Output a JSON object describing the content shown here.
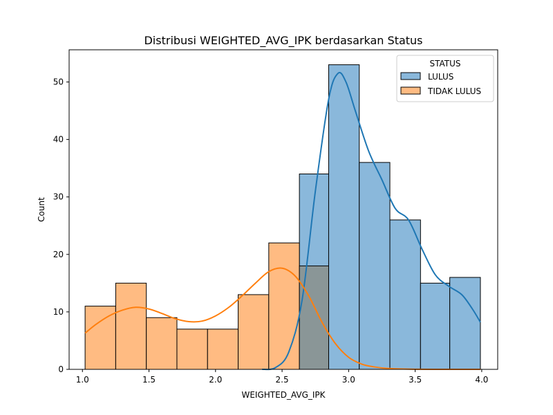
{
  "chart_data": {
    "type": "histogram",
    "title": "Distribusi WEIGHTED_AVG_IPK berdasarkan Status",
    "xlabel": "WEIGHTED_AVG_IPK",
    "ylabel": "Count",
    "xlim": [
      0.9,
      4.12
    ],
    "ylim": [
      0,
      55.6
    ],
    "xticks": [
      "1.0",
      "1.5",
      "2.0",
      "2.5",
      "3.0",
      "3.5",
      "4.0"
    ],
    "yticks": [
      "0",
      "10",
      "20",
      "30",
      "40",
      "50"
    ],
    "legend": {
      "title": "STATUS",
      "placement": "top-right"
    },
    "bin_edges": [
      1.02,
      1.25,
      1.48,
      1.71,
      1.94,
      2.17,
      2.4,
      2.63,
      2.85,
      3.08,
      3.31,
      3.54,
      3.76,
      3.99
    ],
    "series": [
      {
        "name": "LULUS",
        "color": "#1f77b4",
        "fill": "#8ab8db",
        "counts": [
          0,
          0,
          0,
          0,
          0,
          0,
          0,
          34,
          53,
          36,
          26,
          15,
          16
        ],
        "kde": [
          [
            2.35,
            0
          ],
          [
            2.45,
            0.3
          ],
          [
            2.55,
            3
          ],
          [
            2.65,
            12
          ],
          [
            2.75,
            31
          ],
          [
            2.85,
            47
          ],
          [
            2.92,
            51.5
          ],
          [
            2.98,
            50
          ],
          [
            3.05,
            45
          ],
          [
            3.15,
            38
          ],
          [
            3.25,
            33
          ],
          [
            3.35,
            28
          ],
          [
            3.45,
            26
          ],
          [
            3.55,
            21
          ],
          [
            3.65,
            16.5
          ],
          [
            3.75,
            14.5
          ],
          [
            3.85,
            13
          ],
          [
            3.93,
            10.5
          ],
          [
            3.99,
            8.2
          ]
        ]
      },
      {
        "name": "TIDAK LULUS",
        "color": "#ff7f0e",
        "fill": "#ffbb82",
        "counts": [
          11,
          15,
          9,
          7,
          7,
          13,
          22,
          18,
          0,
          0,
          0,
          0,
          0
        ],
        "kde": [
          [
            1.02,
            6.3
          ],
          [
            1.1,
            7.8
          ],
          [
            1.2,
            9.3
          ],
          [
            1.3,
            10.3
          ],
          [
            1.4,
            10.8
          ],
          [
            1.5,
            10.5
          ],
          [
            1.6,
            9.7
          ],
          [
            1.7,
            8.8
          ],
          [
            1.8,
            8.3
          ],
          [
            1.9,
            8.4
          ],
          [
            2.0,
            9.3
          ],
          [
            2.1,
            10.8
          ],
          [
            2.2,
            12.8
          ],
          [
            2.3,
            15
          ],
          [
            2.4,
            17
          ],
          [
            2.5,
            17.6
          ],
          [
            2.6,
            16.2
          ],
          [
            2.7,
            12.8
          ],
          [
            2.8,
            8.2
          ],
          [
            2.9,
            4.5
          ],
          [
            3.0,
            2.1
          ],
          [
            3.1,
            0.9
          ],
          [
            3.2,
            0.4
          ],
          [
            3.3,
            0.15
          ],
          [
            3.5,
            0.02
          ],
          [
            3.8,
            0
          ],
          [
            3.99,
            0
          ]
        ]
      }
    ],
    "overlap_fill": "#8a9697"
  }
}
